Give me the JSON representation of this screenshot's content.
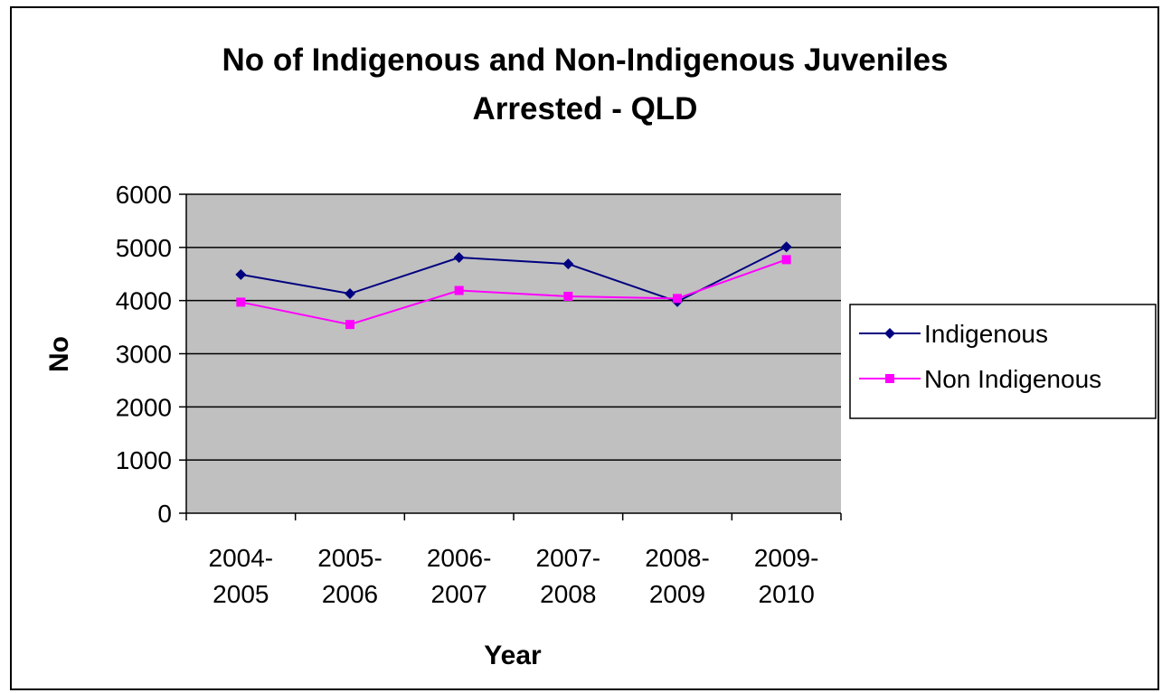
{
  "chart_data": {
    "type": "line",
    "title_lines": [
      "No of Indigenous and Non-Indigenous Juveniles",
      "Arrested - QLD"
    ],
    "xlabel": "Year",
    "ylabel": "No",
    "categories": [
      "2004-2005",
      "2005-2006",
      "2006-2007",
      "2007-2008",
      "2008-2009",
      "2009-2010"
    ],
    "category_label_lines": [
      [
        "2004-",
        "2005"
      ],
      [
        "2005-",
        "2006"
      ],
      [
        "2006-",
        "2007"
      ],
      [
        "2007-",
        "2008"
      ],
      [
        "2008-",
        "2009"
      ],
      [
        "2009-",
        "2010"
      ]
    ],
    "ylim": [
      0,
      6000
    ],
    "yticks": [
      0,
      1000,
      2000,
      3000,
      4000,
      5000,
      6000
    ],
    "grid": true,
    "plot_background": "#c0c0c0",
    "legend_position": "right",
    "series": [
      {
        "name": "Indigenous",
        "color": "#000080",
        "marker": "diamond",
        "values": [
          4490,
          4130,
          4810,
          4690,
          3980,
          5010
        ]
      },
      {
        "name": "Non Indigenous",
        "color": "#ff00ff",
        "marker": "square",
        "values": [
          3970,
          3550,
          4190,
          4080,
          4040,
          4770
        ]
      }
    ]
  }
}
